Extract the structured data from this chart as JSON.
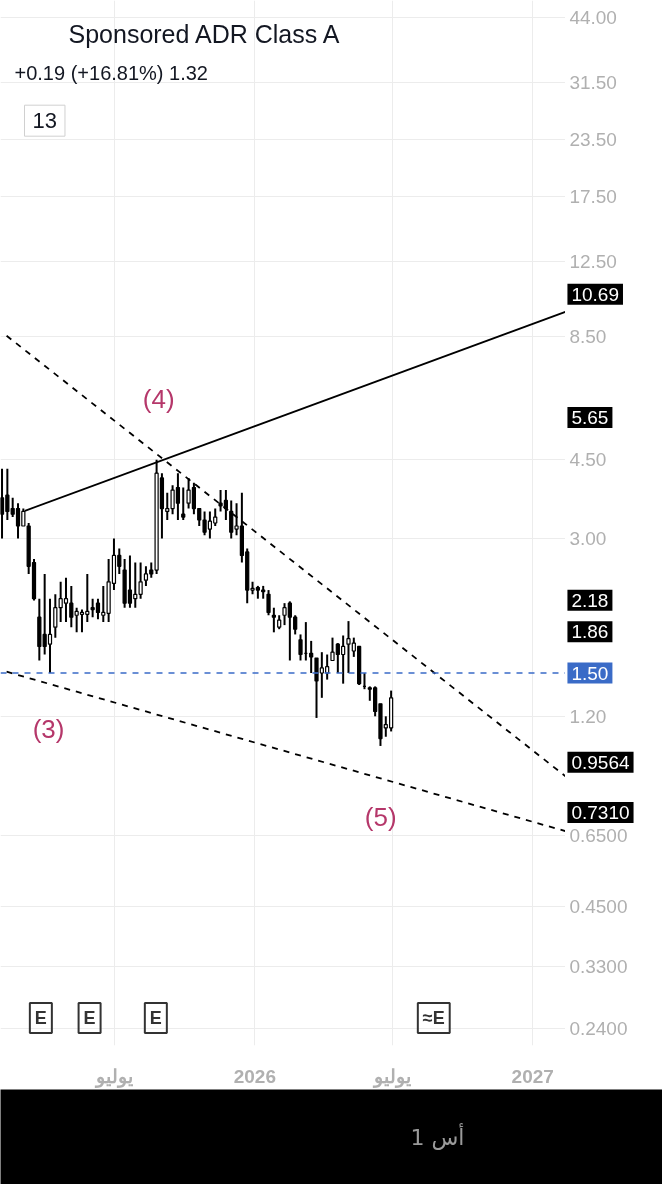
{
  "chart_data": {
    "type": "candlestick",
    "title": "Sponsored ADR Class A",
    "subtitle": "+0.19 (+16.81%)  1.32",
    "series": [
      {
        "color": "#000000",
        "x": [
          "2025-02-03",
          "2025-02-10",
          "2025-02-17",
          "2025-02-24",
          "2025-03-03",
          "2025-03-10",
          "2025-03-17",
          "2025-03-24",
          "2025-03-31",
          "2025-04-07",
          "2025-04-14",
          "2025-04-21",
          "2025-04-28",
          "2025-05-05",
          "2025-05-12",
          "2025-05-19",
          "2025-05-26",
          "2025-06-02",
          "2025-06-09",
          "2025-06-16",
          "2025-06-23",
          "2025-06-30",
          "2025-07-07",
          "2025-07-14",
          "2025-07-21",
          "2025-07-28",
          "2025-08-04",
          "2025-08-11",
          "2025-08-18",
          "2025-08-25",
          "2025-09-01",
          "2025-09-08",
          "2025-09-15",
          "2025-09-22",
          "2025-09-29",
          "2025-10-06",
          "2025-10-13",
          "2025-10-20",
          "2025-10-27",
          "2025-11-03",
          "2025-11-10",
          "2025-11-17",
          "2025-11-24",
          "2025-12-01",
          "2025-12-08",
          "2025-12-15",
          "2025-12-22",
          "2025-12-29",
          "2026-01-05",
          "2026-01-12",
          "2026-01-19",
          "2026-01-26",
          "2026-02-02",
          "2026-02-09",
          "2026-02-16",
          "2026-02-23",
          "2026-03-02",
          "2026-03-09",
          "2026-03-16",
          "2026-03-23",
          "2026-03-30",
          "2026-04-06",
          "2026-04-13",
          "2026-04-20",
          "2026-04-27",
          "2026-05-04",
          "2026-05-11",
          "2026-05-18",
          "2026-05-25",
          "2026-06-01",
          "2026-06-08",
          "2026-06-15",
          "2026-06-22",
          "2026-06-29"
        ],
        "ohlc": [
          [
            3.7,
            4.3,
            3.0,
            3.4
          ],
          [
            3.75,
            4.3,
            3.3,
            3.45
          ],
          [
            3.5,
            3.7,
            3.35,
            3.4
          ],
          [
            3.5,
            3.6,
            3.0,
            3.2
          ],
          [
            3.2,
            3.5,
            3.2,
            3.45
          ],
          [
            3.2,
            3.25,
            2.5,
            2.6
          ],
          [
            2.65,
            2.7,
            2.18,
            2.2
          ],
          [
            2.0,
            2.2,
            1.6,
            1.72
          ],
          [
            1.83,
            2.5,
            1.65,
            1.72
          ],
          [
            1.74,
            2.2,
            1.5,
            1.83
          ],
          [
            1.9,
            2.25,
            1.8,
            2.1
          ],
          [
            2.1,
            2.4,
            1.95,
            2.2
          ],
          [
            2.15,
            2.45,
            1.95,
            2.2
          ],
          [
            2.15,
            2.35,
            1.9,
            2.0
          ],
          [
            2.02,
            2.1,
            1.85,
            2.06
          ],
          [
            2.03,
            2.08,
            1.85,
            2.05
          ],
          [
            2.03,
            2.5,
            1.95,
            2.06
          ],
          [
            2.1,
            2.2,
            2.0,
            2.08
          ],
          [
            2.15,
            2.2,
            1.98,
            2.05
          ],
          [
            2.02,
            2.35,
            1.95,
            2.05
          ],
          [
            2.04,
            2.7,
            1.95,
            2.4
          ],
          [
            2.38,
            3.0,
            2.3,
            2.75
          ],
          [
            2.75,
            2.85,
            2.5,
            2.6
          ],
          [
            2.55,
            2.7,
            2.1,
            2.15
          ],
          [
            2.3,
            2.75,
            2.1,
            2.15
          ],
          [
            2.2,
            2.65,
            2.1,
            2.25
          ],
          [
            2.25,
            2.65,
            2.2,
            2.4
          ],
          [
            2.42,
            2.6,
            2.35,
            2.5
          ],
          [
            2.55,
            2.65,
            2.45,
            2.5
          ],
          [
            2.55,
            4.5,
            2.5,
            4.2
          ],
          [
            4.1,
            4.2,
            3.0,
            3.5
          ],
          [
            3.45,
            3.8,
            3.3,
            3.5
          ],
          [
            3.5,
            3.95,
            3.4,
            3.85
          ],
          [
            3.9,
            4.2,
            3.3,
            3.6
          ],
          [
            3.4,
            3.9,
            3.3,
            3.35
          ],
          [
            3.6,
            4.1,
            3.5,
            3.85
          ],
          [
            3.9,
            4.0,
            3.4,
            3.5
          ],
          [
            3.5,
            3.5,
            3.2,
            3.3
          ],
          [
            3.3,
            3.45,
            3.05,
            3.1
          ],
          [
            3.15,
            3.45,
            3.0,
            3.28
          ],
          [
            3.25,
            3.5,
            3.2,
            3.35
          ],
          [
            3.6,
            3.85,
            3.45,
            3.55
          ],
          [
            3.65,
            3.85,
            3.3,
            3.5
          ],
          [
            3.45,
            3.65,
            3.0,
            3.1
          ],
          [
            3.15,
            3.6,
            3.05,
            3.2
          ],
          [
            3.2,
            3.8,
            2.65,
            2.75
          ],
          [
            2.8,
            2.85,
            2.15,
            2.3
          ],
          [
            2.3,
            2.4,
            2.25,
            2.32
          ],
          [
            2.33,
            2.35,
            2.2,
            2.3
          ],
          [
            2.3,
            2.35,
            2.2,
            2.28
          ],
          [
            2.25,
            2.3,
            2.02,
            2.05
          ],
          [
            2.02,
            2.1,
            1.85,
            2.0
          ],
          [
            1.9,
            2.02,
            1.88,
            1.97
          ],
          [
            2.02,
            2.15,
            1.92,
            2.1
          ],
          [
            2.15,
            2.17,
            1.6,
            2.0
          ],
          [
            2.0,
            2.02,
            1.83,
            1.88
          ],
          [
            1.78,
            1.83,
            1.6,
            1.65
          ],
          [
            1.66,
            1.95,
            1.6,
            1.66
          ],
          [
            1.66,
            1.77,
            1.5,
            1.63
          ],
          [
            1.62,
            1.62,
            1.19,
            1.44
          ],
          [
            1.5,
            1.67,
            1.32,
            1.54
          ],
          [
            1.5,
            1.65,
            1.45,
            1.55
          ],
          [
            1.6,
            1.8,
            1.6,
            1.67
          ],
          [
            1.74,
            1.75,
            1.5,
            1.65
          ],
          [
            1.65,
            1.82,
            1.42,
            1.72
          ],
          [
            1.74,
            1.96,
            1.5,
            1.79
          ],
          [
            1.68,
            1.8,
            1.63,
            1.75
          ],
          [
            1.72,
            1.72,
            1.41,
            1.42
          ],
          [
            1.4,
            1.5,
            1.38,
            1.4
          ],
          [
            1.39,
            1.4,
            1.3,
            1.38
          ],
          [
            1.39,
            1.4,
            1.2,
            1.23
          ],
          [
            1.28,
            1.28,
            1.03,
            1.07
          ],
          [
            1.13,
            1.2,
            1.08,
            1.15
          ],
          [
            1.13,
            1.37,
            1.11,
            1.32
          ]
        ]
      },
      {
        "type": "line",
        "color": "#000000",
        "line_style": "solid",
        "x": [
          "2025-03-05",
          "2027-02-13"
        ],
        "values": [
          3.46,
          9.65
        ]
      },
      {
        "type": "line",
        "color": "#000000",
        "line_style": "dashed",
        "x": [
          "2025-02-09",
          "2027-02-13"
        ],
        "values": [
          8.53,
          0.881
        ]
      },
      {
        "type": "line",
        "color": "#000000",
        "line_style": "dashed",
        "x": [
          "2025-02-09",
          "2027-02-13"
        ],
        "values": [
          1.51,
          0.664
        ]
      }
    ],
    "log": true,
    "grid": true,
    "xlim": [
      "2025-02-01",
      "2027-02-13"
    ],
    "xticks": [
      {
        "value": "2025-07-01",
        "label": "يوليو"
      },
      {
        "value": "2026-01-01",
        "label": "2026"
      },
      {
        "value": "2026-07-01",
        "label": "يوليو"
      },
      {
        "value": "2027-01-01",
        "label": "2027"
      }
    ],
    "ylim": [
      0.22,
      48
    ],
    "yticks": [
      {
        "value": 44,
        "label": "44.00"
      },
      {
        "value": 31.5,
        "label": "31.50"
      },
      {
        "value": 23.5,
        "label": "23.50"
      },
      {
        "value": 17.5,
        "label": "17.50"
      },
      {
        "value": 12.5,
        "label": "12.50"
      },
      {
        "value": 8.5,
        "label": "8.50"
      },
      {
        "value": 4.5,
        "label": "4.50"
      },
      {
        "value": 3,
        "label": "3.00"
      },
      {
        "value": 1.2,
        "label": "1.20"
      },
      {
        "value": 0.65,
        "label": "0.6500"
      },
      {
        "value": 0.45,
        "label": "0.4500"
      },
      {
        "value": 0.33,
        "label": "0.3300"
      },
      {
        "value": 0.24,
        "label": "0.2400"
      }
    ],
    "ref_lines": [
      {
        "axis": "y",
        "value": 1.5,
        "label": "1.50",
        "color": "#3a6bc7",
        "line_style": "dashed"
      }
    ],
    "annotations": [
      "13",
      "1 أس",
      "(3)",
      "(4)",
      "(5)",
      "10.69",
      "5.65",
      "2.18",
      "1.86",
      "0.9564",
      "0.7310",
      {
        "text": "E",
        "x": "2025-03-26"
      },
      {
        "text": "E",
        "x": "2025-05-29"
      },
      {
        "text": "E",
        "x": "2025-08-24"
      },
      {
        "text": "≈E",
        "x": "2026-08-24"
      }
    ]
  }
}
